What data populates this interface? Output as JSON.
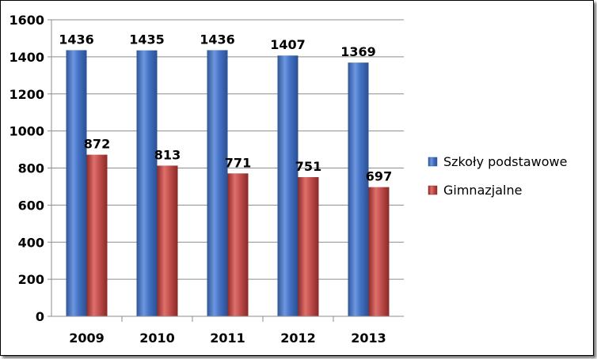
{
  "chart_data": {
    "type": "bar",
    "categories": [
      "2009",
      "2010",
      "2011",
      "2012",
      "2013"
    ],
    "series": [
      {
        "name": "Szkoły podstawowe",
        "values": [
          1436,
          1435,
          1436,
          1407,
          1369
        ],
        "color": "#4472C4"
      },
      {
        "name": "Gimnazjalne",
        "values": [
          872,
          813,
          771,
          751,
          697
        ],
        "color": "#C0504D"
      }
    ],
    "yticks": [
      "0",
      "200",
      "400",
      "600",
      "800",
      "1000",
      "1200",
      "1400",
      "1600"
    ],
    "ylim": [
      0,
      1600
    ],
    "grid": true,
    "legend_position": "right",
    "data_labels": true
  }
}
